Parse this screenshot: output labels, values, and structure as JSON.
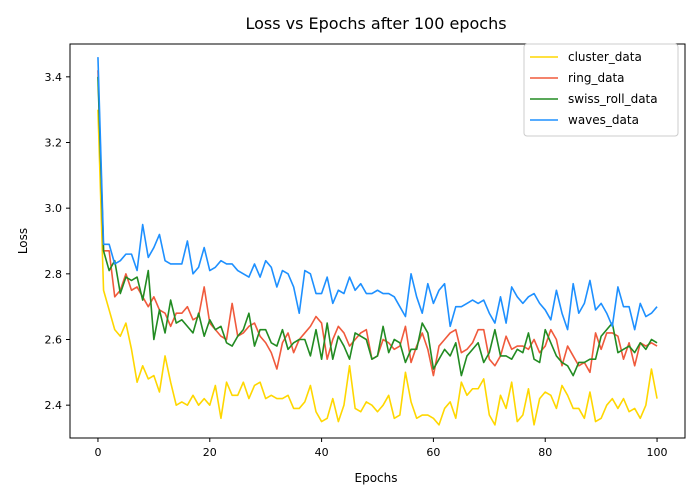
{
  "chart_data": {
    "type": "line",
    "title": "Loss vs Epochs after 100 epochs",
    "xlabel": "Epochs",
    "ylabel": "Loss",
    "xlim": [
      -5,
      105
    ],
    "ylim": [
      2.3,
      3.5
    ],
    "xticks": [
      0,
      20,
      40,
      60,
      80,
      100
    ],
    "yticks": [
      2.4,
      2.6,
      2.8,
      3.0,
      3.2,
      3.4
    ],
    "grid": false,
    "legend_position": "upper right",
    "series": [
      {
        "name": "cluster_data",
        "color": "#ffd700",
        "values": [
          3.3,
          2.75,
          2.69,
          2.63,
          2.61,
          2.65,
          2.57,
          2.47,
          2.52,
          2.48,
          2.49,
          2.44,
          2.55,
          2.47,
          2.4,
          2.41,
          2.4,
          2.43,
          2.4,
          2.42,
          2.4,
          2.46,
          2.36,
          2.47,
          2.43,
          2.43,
          2.47,
          2.42,
          2.46,
          2.47,
          2.42,
          2.43,
          2.42,
          2.42,
          2.43,
          2.39,
          2.39,
          2.41,
          2.46,
          2.38,
          2.35,
          2.36,
          2.42,
          2.35,
          2.4,
          2.52,
          2.39,
          2.38,
          2.41,
          2.4,
          2.38,
          2.4,
          2.43,
          2.36,
          2.37,
          2.5,
          2.41,
          2.36,
          2.37,
          2.37,
          2.36,
          2.34,
          2.39,
          2.41,
          2.36,
          2.47,
          2.43,
          2.45,
          2.45,
          2.48,
          2.37,
          2.34,
          2.43,
          2.39,
          2.47,
          2.35,
          2.37,
          2.45,
          2.34,
          2.42,
          2.44,
          2.43,
          2.39,
          2.46,
          2.43,
          2.39,
          2.39,
          2.36,
          2.44,
          2.35,
          2.36,
          2.4,
          2.42,
          2.39,
          2.42,
          2.38,
          2.39,
          2.36,
          2.4,
          2.51,
          2.42
        ]
      },
      {
        "name": "ring_data",
        "color": "#f05a3c",
        "values": [
          3.42,
          2.87,
          2.87,
          2.73,
          2.75,
          2.8,
          2.75,
          2.76,
          2.73,
          2.7,
          2.73,
          2.69,
          2.68,
          2.64,
          2.68,
          2.68,
          2.7,
          2.66,
          2.67,
          2.76,
          2.65,
          2.63,
          2.61,
          2.6,
          2.71,
          2.61,
          2.62,
          2.64,
          2.65,
          2.61,
          2.59,
          2.56,
          2.51,
          2.59,
          2.62,
          2.56,
          2.6,
          2.62,
          2.64,
          2.67,
          2.65,
          2.54,
          2.6,
          2.64,
          2.62,
          2.58,
          2.6,
          2.62,
          2.63,
          2.54,
          2.55,
          2.6,
          2.59,
          2.57,
          2.58,
          2.64,
          2.53,
          2.58,
          2.62,
          2.57,
          2.49,
          2.58,
          2.6,
          2.62,
          2.63,
          2.56,
          2.57,
          2.59,
          2.63,
          2.63,
          2.54,
          2.52,
          2.55,
          2.61,
          2.57,
          2.58,
          2.58,
          2.57,
          2.6,
          2.56,
          2.58,
          2.63,
          2.6,
          2.52,
          2.58,
          2.55,
          2.52,
          2.53,
          2.5,
          2.62,
          2.57,
          2.62,
          2.62,
          2.61,
          2.54,
          2.59,
          2.52,
          2.59,
          2.58,
          2.59,
          2.58
        ]
      },
      {
        "name": "swiss_roll_data",
        "color": "#228b22",
        "values": [
          3.4,
          2.87,
          2.81,
          2.84,
          2.74,
          2.79,
          2.78,
          2.79,
          2.72,
          2.81,
          2.6,
          2.69,
          2.62,
          2.72,
          2.65,
          2.66,
          2.64,
          2.62,
          2.68,
          2.61,
          2.66,
          2.63,
          2.64,
          2.59,
          2.58,
          2.61,
          2.63,
          2.68,
          2.58,
          2.63,
          2.63,
          2.59,
          2.58,
          2.63,
          2.57,
          2.59,
          2.6,
          2.6,
          2.55,
          2.63,
          2.54,
          2.65,
          2.54,
          2.61,
          2.58,
          2.54,
          2.62,
          2.61,
          2.6,
          2.54,
          2.55,
          2.64,
          2.56,
          2.6,
          2.59,
          2.53,
          2.57,
          2.57,
          2.65,
          2.62,
          2.51,
          2.54,
          2.57,
          2.55,
          2.59,
          2.49,
          2.55,
          2.57,
          2.59,
          2.53,
          2.56,
          2.63,
          2.55,
          2.55,
          2.54,
          2.57,
          2.56,
          2.62,
          2.54,
          2.53,
          2.63,
          2.59,
          2.55,
          2.53,
          2.52,
          2.49,
          2.53,
          2.53,
          2.54,
          2.54,
          2.61,
          2.63,
          2.65,
          2.56,
          2.57,
          2.58,
          2.56,
          2.59,
          2.57,
          2.6,
          2.59
        ]
      },
      {
        "name": "waves_data",
        "color": "#1e90ff",
        "values": [
          3.46,
          2.89,
          2.89,
          2.83,
          2.84,
          2.86,
          2.86,
          2.81,
          2.95,
          2.85,
          2.88,
          2.92,
          2.84,
          2.83,
          2.83,
          2.83,
          2.9,
          2.8,
          2.82,
          2.88,
          2.81,
          2.82,
          2.84,
          2.83,
          2.83,
          2.81,
          2.8,
          2.79,
          2.83,
          2.79,
          2.84,
          2.82,
          2.76,
          2.81,
          2.8,
          2.76,
          2.68,
          2.81,
          2.8,
          2.74,
          2.74,
          2.79,
          2.71,
          2.75,
          2.74,
          2.79,
          2.75,
          2.77,
          2.74,
          2.74,
          2.75,
          2.74,
          2.74,
          2.73,
          2.7,
          2.67,
          2.8,
          2.73,
          2.68,
          2.77,
          2.71,
          2.75,
          2.77,
          2.64,
          2.7,
          2.7,
          2.71,
          2.72,
          2.71,
          2.72,
          2.68,
          2.65,
          2.73,
          2.65,
          2.76,
          2.73,
          2.71,
          2.73,
          2.74,
          2.71,
          2.69,
          2.66,
          2.75,
          2.68,
          2.63,
          2.77,
          2.68,
          2.71,
          2.78,
          2.69,
          2.71,
          2.68,
          2.64,
          2.76,
          2.7,
          2.7,
          2.63,
          2.71,
          2.67,
          2.68,
          2.7
        ]
      }
    ]
  }
}
